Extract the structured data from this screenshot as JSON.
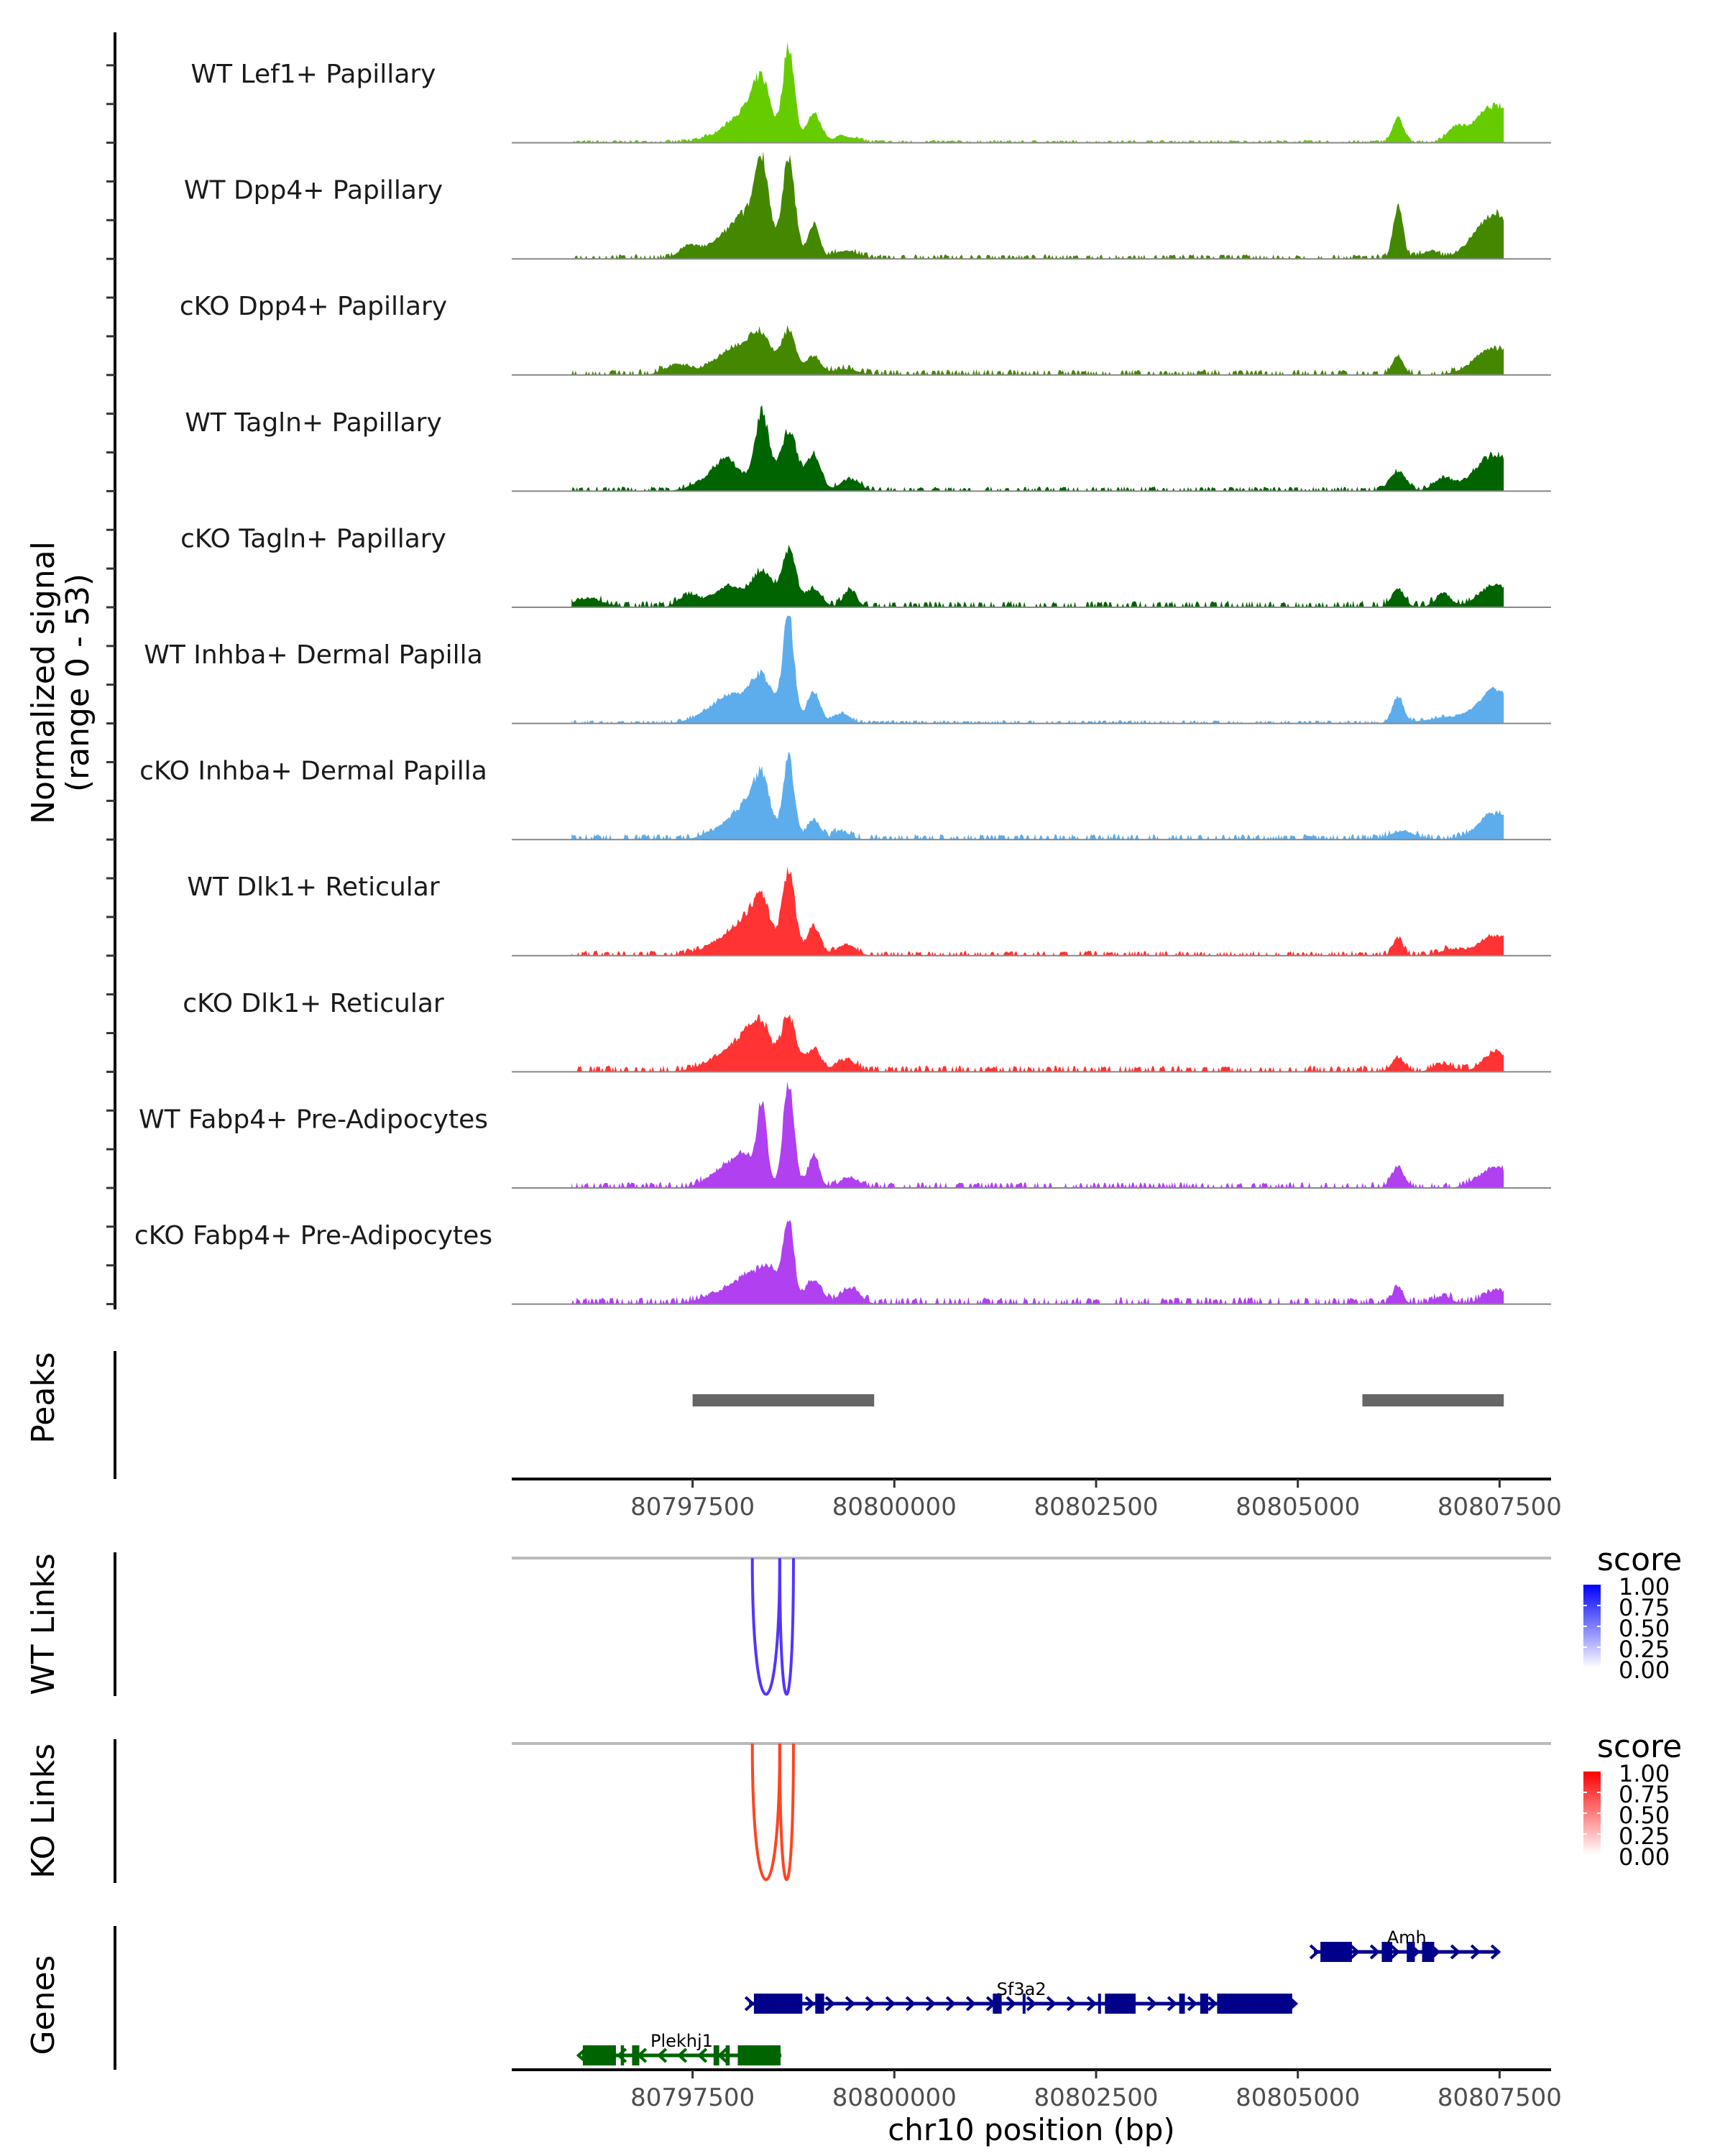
{
  "chart_data": {
    "type": "area",
    "title": "",
    "region": {
      "chrom": "chr10",
      "start": 80795259,
      "end": 80808138
    },
    "xlabel": "chr10 position (bp)",
    "xticks": [
      80797500,
      80800000,
      80802500,
      80805000,
      80807500
    ],
    "xtick_labels": [
      "80797500",
      "80800000",
      "80802500",
      "80805000",
      "80807500"
    ],
    "ylabel_line1": "Normalized signal",
    "ylabel_line2": "(range 0 - 53)",
    "ylim": [
      0,
      53
    ],
    "data_end": 80807552,
    "tracks": [
      {
        "name": "WT Lef1+ Papillary",
        "color": "#66CC00",
        "noise": 0.6,
        "peaks": [
          [
            80797900,
            4,
            250
          ],
          [
            80798150,
            12,
            180
          ],
          [
            80798362,
            26,
            110
          ],
          [
            80798690,
            48,
            70
          ],
          [
            80799000,
            14,
            90
          ],
          [
            80799400,
            3,
            150
          ],
          [
            80806241,
            12,
            70
          ],
          [
            80806948,
            6,
            100
          ],
          [
            80807450,
            18,
            250
          ]
        ]
      },
      {
        "name": "WT Dpp4+ Papillary",
        "color": "#448800",
        "noise": 1.0,
        "peaks": [
          [
            80797450,
            6,
            120
          ],
          [
            80797900,
            10,
            200
          ],
          [
            80798150,
            16,
            140
          ],
          [
            80798362,
            46,
            90
          ],
          [
            80798690,
            48,
            80
          ],
          [
            80799000,
            17,
            70
          ],
          [
            80799400,
            4,
            150
          ],
          [
            80806241,
            26,
            60
          ],
          [
            80806600,
            3,
            120
          ],
          [
            80807450,
            22,
            250
          ]
        ]
      },
      {
        "name": "cKO Dpp4+ Papillary",
        "color": "#448800",
        "noise": 1.2,
        "peaks": [
          [
            80797300,
            5,
            150
          ],
          [
            80797900,
            8,
            220
          ],
          [
            80798150,
            10,
            160
          ],
          [
            80798362,
            16,
            120
          ],
          [
            80798690,
            22,
            90
          ],
          [
            80799000,
            9,
            90
          ],
          [
            80799400,
            3,
            150
          ],
          [
            80806241,
            9,
            70
          ],
          [
            80807450,
            13,
            250
          ]
        ]
      },
      {
        "name": "WT Tagln+ Papillary",
        "color": "#006400",
        "noise": 1.0,
        "peaks": [
          [
            80797700,
            5,
            200
          ],
          [
            80797950,
            13,
            160
          ],
          [
            80798362,
            38,
            90
          ],
          [
            80798690,
            30,
            100
          ],
          [
            80799000,
            18,
            90
          ],
          [
            80799450,
            6,
            120
          ],
          [
            80806241,
            10,
            100
          ],
          [
            80806800,
            6,
            120
          ],
          [
            80807450,
            18,
            250
          ]
        ]
      },
      {
        "name": "cKO Tagln+ Papillary",
        "color": "#006400",
        "noise": 1.4,
        "peaks": [
          [
            80796200,
            4,
            200
          ],
          [
            80797450,
            6,
            120
          ],
          [
            80797950,
            10,
            200
          ],
          [
            80798362,
            17,
            120
          ],
          [
            80798690,
            27,
            90
          ],
          [
            80799000,
            9,
            100
          ],
          [
            80799450,
            9,
            80
          ],
          [
            80806241,
            9,
            80
          ],
          [
            80806800,
            6,
            100
          ],
          [
            80807450,
            11,
            200
          ]
        ]
      },
      {
        "name": "WT Inhba+ Dermal Papilla",
        "color": "#5DADEC",
        "noise": 0.7,
        "peaks": [
          [
            80797700,
            4,
            200
          ],
          [
            80798000,
            12,
            200
          ],
          [
            80798362,
            22,
            140
          ],
          [
            80798690,
            53,
            70
          ],
          [
            80799000,
            16,
            80
          ],
          [
            80799350,
            5,
            100
          ],
          [
            80806241,
            13,
            70
          ],
          [
            80806900,
            3,
            300
          ],
          [
            80807450,
            16,
            200
          ]
        ]
      },
      {
        "name": "cKO Inhba+ Dermal Papilla",
        "color": "#5DADEC",
        "noise": 1.2,
        "peaks": [
          [
            80797900,
            6,
            200
          ],
          [
            80798150,
            13,
            140
          ],
          [
            80798362,
            29,
            100
          ],
          [
            80798690,
            39,
            70
          ],
          [
            80799000,
            10,
            80
          ],
          [
            80799350,
            4,
            100
          ],
          [
            80806300,
            4,
            150
          ],
          [
            80807450,
            13,
            200
          ]
        ]
      },
      {
        "name": "WT Dlk1+ Reticular",
        "color": "#FF3333",
        "noise": 1.1,
        "peaks": [
          [
            80797900,
            7,
            250
          ],
          [
            80798150,
            12,
            160
          ],
          [
            80798362,
            24,
            110
          ],
          [
            80798690,
            42,
            80
          ],
          [
            80799000,
            15,
            80
          ],
          [
            80799400,
            5,
            120
          ],
          [
            80806241,
            9,
            60
          ],
          [
            80806900,
            3,
            150
          ],
          [
            80807450,
            10,
            200
          ]
        ]
      },
      {
        "name": "cKO Dlk1+ Reticular",
        "color": "#FF3333",
        "noise": 1.4,
        "peaks": [
          [
            80797900,
            7,
            250
          ],
          [
            80798150,
            12,
            160
          ],
          [
            80798362,
            19,
            120
          ],
          [
            80798690,
            27,
            90
          ],
          [
            80799000,
            11,
            90
          ],
          [
            80799400,
            6,
            120
          ],
          [
            80806241,
            7,
            80
          ],
          [
            80806800,
            4,
            120
          ],
          [
            80807450,
            10,
            150
          ]
        ]
      },
      {
        "name": "WT Fabp4+ Pre-Adipocytes",
        "color": "#B040F0",
        "noise": 1.3,
        "peaks": [
          [
            80797900,
            9,
            200
          ],
          [
            80798150,
            12,
            140
          ],
          [
            80798362,
            40,
            60
          ],
          [
            80798690,
            50,
            70
          ],
          [
            80799000,
            16,
            70
          ],
          [
            80799450,
            5,
            120
          ],
          [
            80806241,
            10,
            80
          ],
          [
            80807450,
            10,
            200
          ]
        ]
      },
      {
        "name": "cKO Fabp4+ Pre-Adipocytes",
        "color": "#B040F0",
        "noise": 1.5,
        "peaks": [
          [
            80797900,
            6,
            250
          ],
          [
            80798200,
            10,
            160
          ],
          [
            80798450,
            16,
            120
          ],
          [
            80798690,
            40,
            65
          ],
          [
            80799000,
            12,
            100
          ],
          [
            80799450,
            8,
            120
          ],
          [
            80806241,
            9,
            60
          ],
          [
            80806800,
            4,
            100
          ],
          [
            80807450,
            7,
            150
          ]
        ]
      }
    ],
    "peaks_track": {
      "label": "Peaks",
      "color": "#666666",
      "regions": [
        [
          80797500,
          80799750
        ],
        [
          80805800,
          80807552
        ]
      ]
    },
    "links": [
      {
        "label": "WT Links",
        "color": "#5533FF",
        "legend_title": "score",
        "legend_color": "#0000FF",
        "legend_ticks": [
          "1.00",
          "0.75",
          "0.50",
          "0.25",
          "0.00"
        ],
        "arcs": [
          [
            80798240,
            80798580
          ],
          [
            80798580,
            80798750
          ]
        ]
      },
      {
        "label": "KO Links",
        "color": "#FF4422",
        "legend_title": "score",
        "legend_color": "#FF0000",
        "legend_ticks": [
          "1.00",
          "0.75",
          "0.50",
          "0.25",
          "0.00"
        ],
        "arcs": [
          [
            80798240,
            80798580
          ],
          [
            80798580,
            80798750
          ]
        ]
      }
    ],
    "genes_track": {
      "label": "Genes",
      "genes": [
        {
          "name": "Amh",
          "strand": "+",
          "color": "#00008B",
          "row": 0,
          "start": 80805200,
          "end": 80807500,
          "exons": [
            [
              80805280,
              80805670
            ],
            [
              80806040,
              80806170
            ],
            [
              80806350,
              80806450
            ],
            [
              80806540,
              80806690
            ]
          ]
        },
        {
          "name": "Sf3a2",
          "strand": "+",
          "color": "#00008B",
          "row": 1,
          "start": 80798200,
          "end": 80804950,
          "exons": [
            [
              80798260,
              80798860
            ],
            [
              80799020,
              80799130
            ],
            [
              80801220,
              80801330
            ],
            [
              80801590,
              80801620
            ],
            [
              80802525,
              80802550
            ],
            [
              80802610,
              80802990
            ],
            [
              80803530,
              80803600
            ],
            [
              80803790,
              80803890
            ],
            [
              80804000,
              80804930
            ]
          ]
        },
        {
          "name": "Plekhj1",
          "strand": "-",
          "color": "#006400",
          "row": 2,
          "start": 80796130,
          "end": 80798600,
          "exons": [
            [
              80796140,
              80796550
            ],
            [
              80796610,
              80796650
            ],
            [
              80796750,
              80796840
            ],
            [
              80797760,
              80797830
            ],
            [
              80797910,
              80797960
            ],
            [
              80798060,
              80798590
            ]
          ]
        }
      ]
    }
  }
}
